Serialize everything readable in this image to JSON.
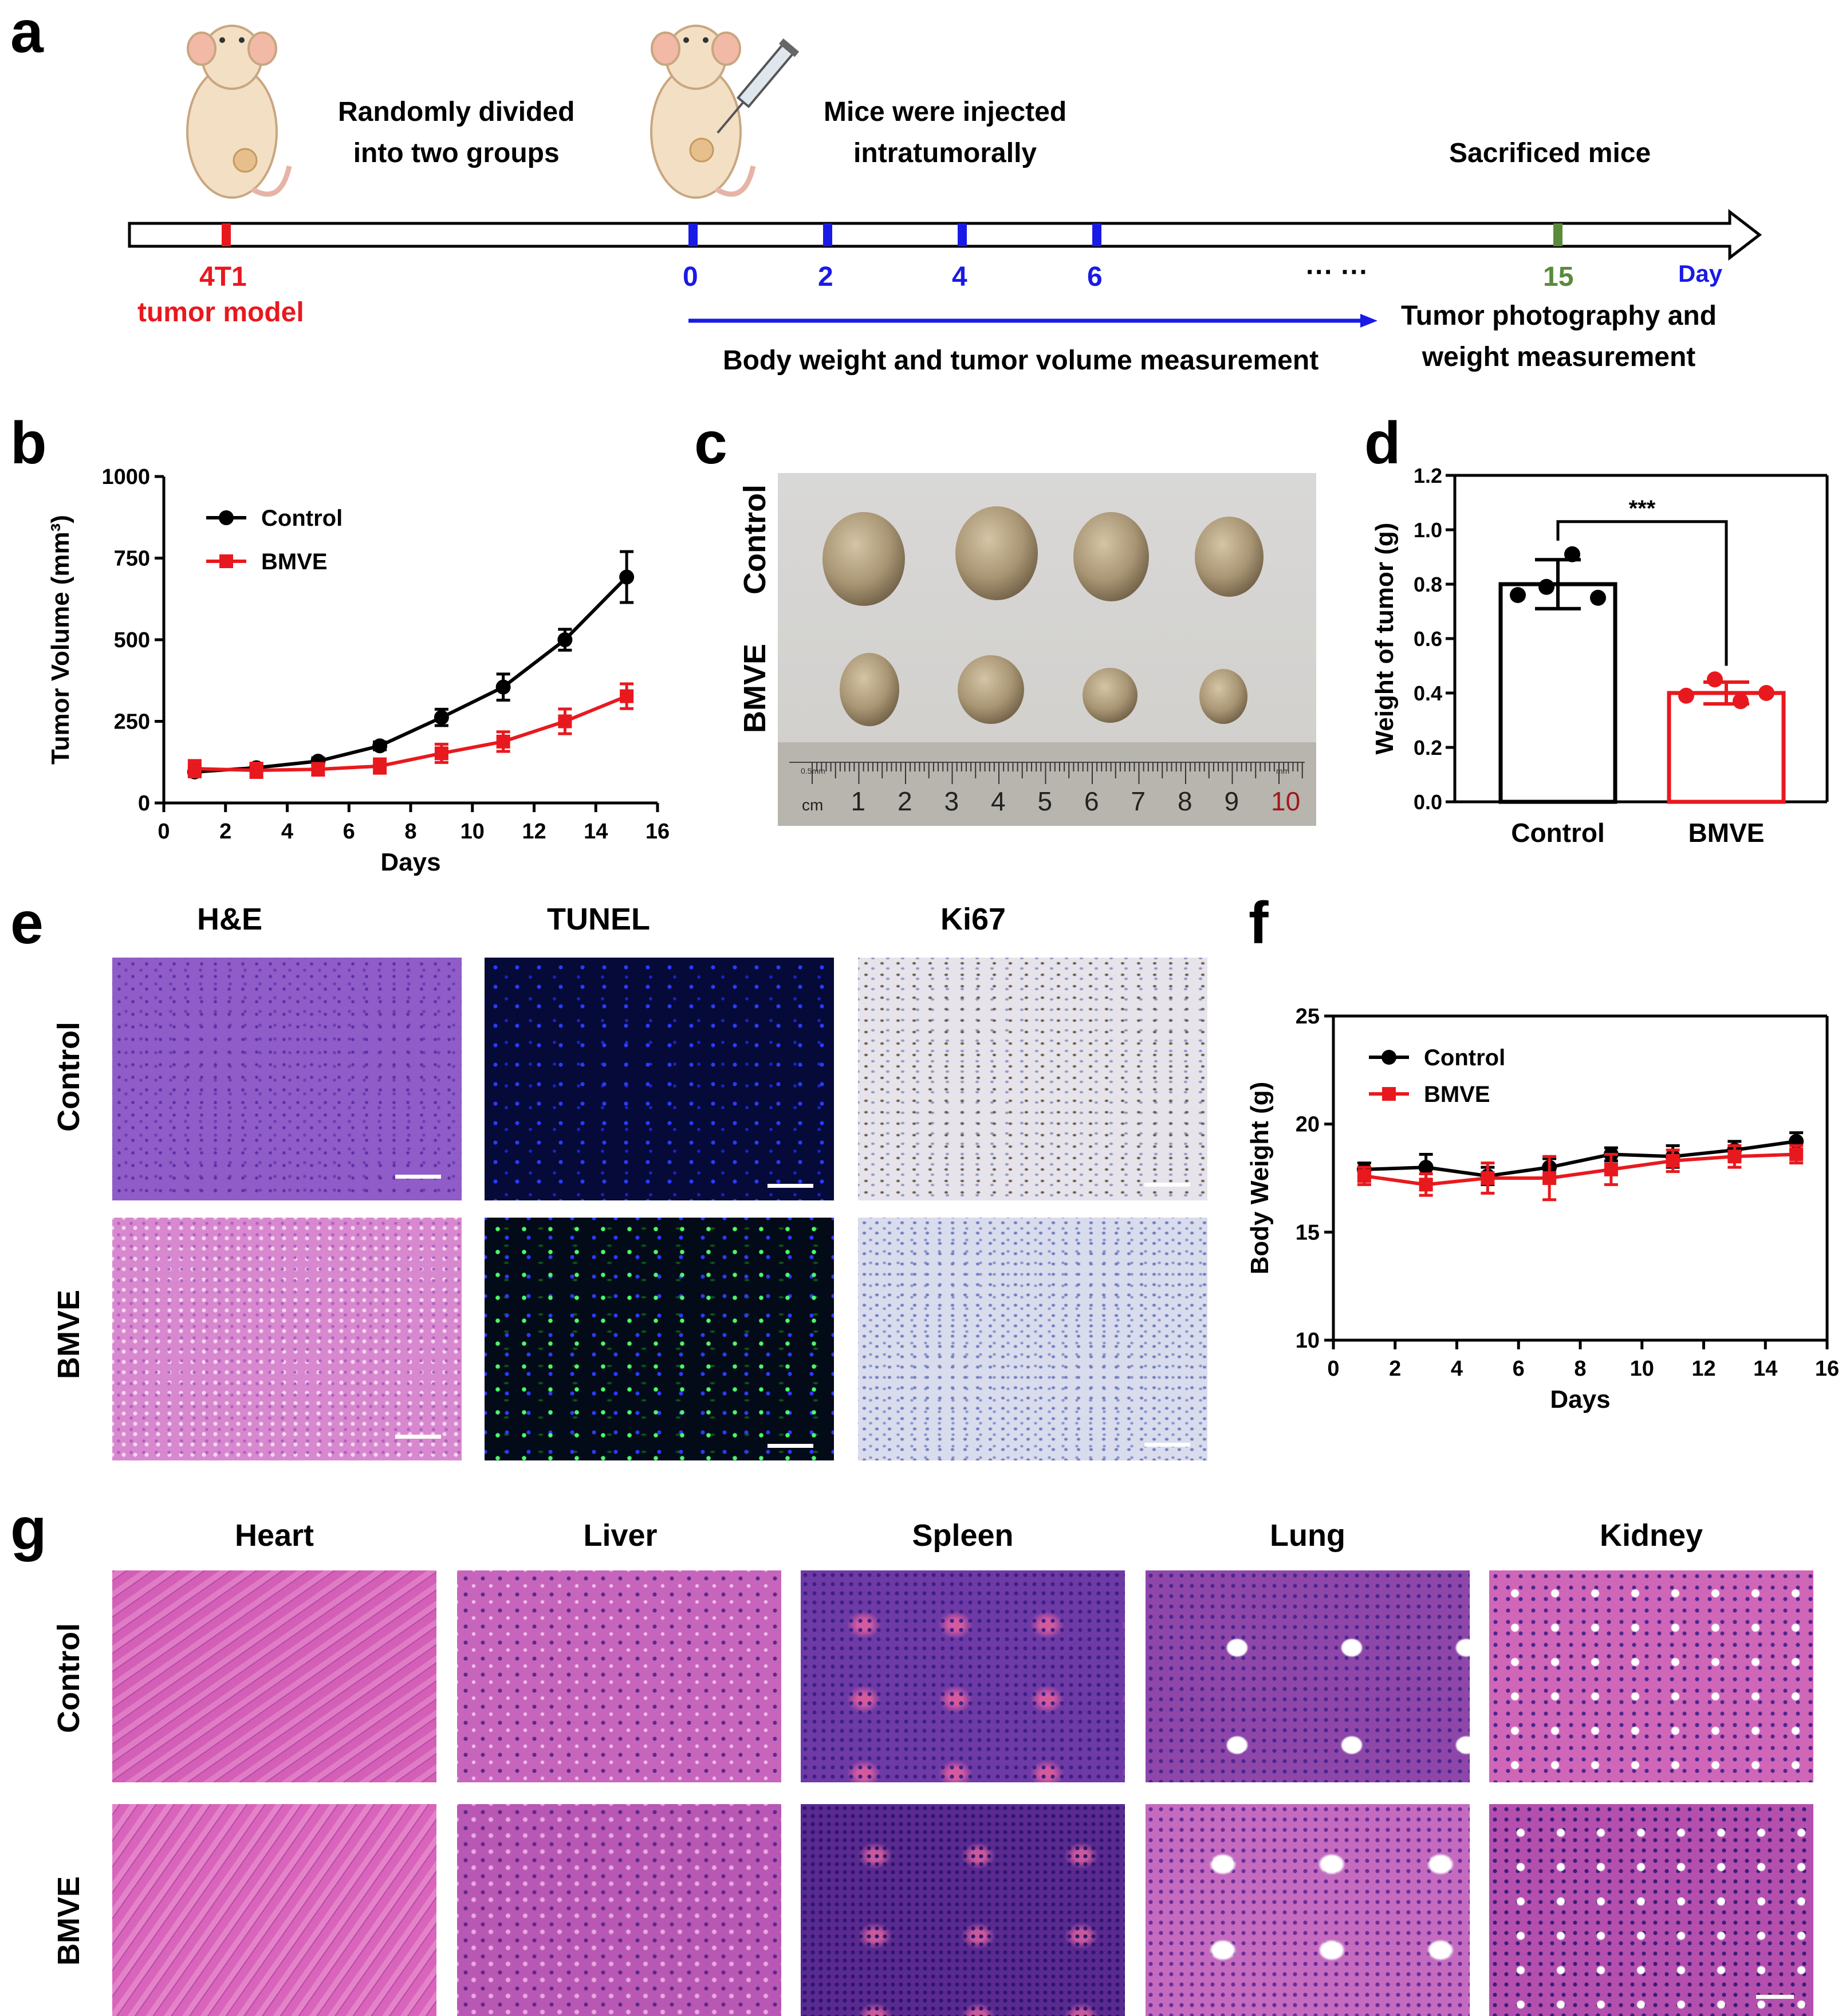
{
  "panel_letters": {
    "a": "a",
    "b": "b",
    "c": "c",
    "d": "d",
    "e": "e",
    "f": "f",
    "g": "g"
  },
  "timeline": {
    "top_left_caption": "Randomly divided\ninto two groups",
    "top_mid_caption": "Mice were injected\nintratumorally",
    "top_right_caption": "Sacrificed mice",
    "model_day_label": "4T1",
    "model_caption": "tumor model",
    "day_ticks": [
      "0",
      "2",
      "4",
      "6"
    ],
    "ellipsis": "··· ···",
    "end_day": "15",
    "unit": "Day",
    "span_caption": "Body weight and tumor volume measurement",
    "end_caption": "Tumor photography and\nweight measurement",
    "colors": {
      "model": "#e8191e",
      "days": "#1a1ae6",
      "end": "#5a8a3a"
    }
  },
  "photo_c": {
    "row_labels": [
      "Control",
      "BMVE"
    ],
    "ruler_unit": "cm",
    "ruler_numbers": [
      "1",
      "2",
      "3",
      "4",
      "5",
      "6",
      "7",
      "8",
      "9",
      "10"
    ],
    "ruler_small_left": "0.5mm",
    "ruler_small_right": "mm"
  },
  "panel_e": {
    "columns": [
      "H&E",
      "TUNEL",
      "Ki67"
    ],
    "rows": [
      "Control",
      "BMVE"
    ]
  },
  "panel_g": {
    "columns": [
      "Heart",
      "Liver",
      "Spleen",
      "Lung",
      "Kidney"
    ],
    "rows": [
      "Control",
      "BMVE"
    ]
  },
  "chart_data": [
    {
      "id": "b",
      "type": "line",
      "xlabel": "Days",
      "ylabel": "Tumor Volume (mm³)",
      "xlim": [
        0,
        16
      ],
      "ylim": [
        0,
        1000
      ],
      "xticks": [
        0,
        2,
        4,
        6,
        8,
        10,
        12,
        14,
        16
      ],
      "yticks": [
        0,
        250,
        500,
        750,
        1000
      ],
      "legend_position": "top-left",
      "series": [
        {
          "name": "Control",
          "color": "#000000",
          "marker": "circle",
          "x": [
            1,
            3,
            5,
            7,
            9,
            11,
            13,
            15
          ],
          "y": [
            95,
            108,
            128,
            175,
            262,
            355,
            500,
            692
          ],
          "err": [
            12,
            12,
            10,
            12,
            25,
            40,
            32,
            78
          ]
        },
        {
          "name": "BMVE",
          "color": "#e8191e",
          "marker": "square",
          "x": [
            1,
            3,
            5,
            7,
            9,
            11,
            13,
            15
          ],
          "y": [
            105,
            100,
            103,
            113,
            152,
            188,
            250,
            327
          ],
          "err": [
            25,
            22,
            18,
            22,
            28,
            30,
            38,
            38
          ]
        }
      ]
    },
    {
      "id": "d",
      "type": "bar",
      "categories": [
        "Control",
        "BMVE"
      ],
      "values": [
        0.8,
        0.4
      ],
      "errors": [
        0.09,
        0.04
      ],
      "points": [
        [
          0.76,
          0.79,
          0.91,
          0.75
        ],
        [
          0.39,
          0.45,
          0.37,
          0.4
        ]
      ],
      "colors": [
        "#000000",
        "#e8191e"
      ],
      "ylabel": "Weight of tumor (g)",
      "ylim": [
        0,
        1.2
      ],
      "yticks": [
        0.0,
        0.2,
        0.4,
        0.6,
        0.8,
        1.0,
        1.2
      ],
      "significance": "***"
    },
    {
      "id": "f",
      "type": "line",
      "xlabel": "Days",
      "ylabel": "Body Weight (g)",
      "xlim": [
        0,
        16
      ],
      "ylim": [
        10,
        25
      ],
      "xticks": [
        0,
        2,
        4,
        6,
        8,
        10,
        12,
        14,
        16
      ],
      "yticks": [
        10,
        15,
        20,
        25
      ],
      "legend_position": "top-left",
      "series": [
        {
          "name": "Control",
          "color": "#000000",
          "marker": "circle",
          "x": [
            1,
            3,
            5,
            7,
            9,
            11,
            13,
            15
          ],
          "y": [
            17.9,
            18.0,
            17.6,
            18.0,
            18.6,
            18.5,
            18.8,
            19.2
          ],
          "err": [
            0.3,
            0.6,
            0.4,
            0.4,
            0.3,
            0.5,
            0.4,
            0.4
          ]
        },
        {
          "name": "BMVE",
          "color": "#e8191e",
          "marker": "square",
          "x": [
            1,
            3,
            5,
            7,
            9,
            11,
            13,
            15
          ],
          "y": [
            17.6,
            17.2,
            17.5,
            17.5,
            17.9,
            18.3,
            18.5,
            18.6
          ],
          "err": [
            0.4,
            0.5,
            0.7,
            1.0,
            0.7,
            0.5,
            0.5,
            0.4
          ]
        }
      ]
    }
  ]
}
